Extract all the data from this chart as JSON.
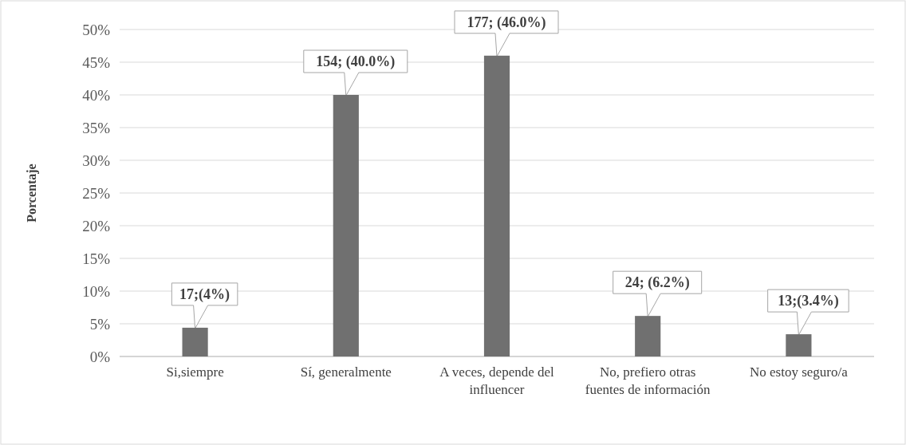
{
  "chart_data": {
    "type": "bar",
    "ylabel": "Porcentaje",
    "categories": [
      "Si,siempre",
      "Sí, generalmente",
      "A veces, depende del influencer",
      "No, prefiero otras fuentes de información",
      "No estoy seguro/a"
    ],
    "values": [
      4.4,
      40,
      46,
      6.2,
      3.4
    ],
    "value_labels": [
      "17;(4%)",
      "154; (40.0%)",
      "177; (46.0%)",
      "24; (6.2%)",
      "13;(3.4%)"
    ],
    "color": "#707070",
    "ylim": [
      0,
      50
    ],
    "yticks": [
      {
        "value": 0,
        "label": "0%"
      },
      {
        "value": 5,
        "label": "5%"
      },
      {
        "value": 10,
        "label": "10%"
      },
      {
        "value": 15,
        "label": "15%"
      },
      {
        "value": 20,
        "label": "20%"
      },
      {
        "value": 25,
        "label": "25%"
      },
      {
        "value": 30,
        "label": "30%"
      },
      {
        "value": 35,
        "label": "35%"
      },
      {
        "value": 40,
        "label": "40%"
      },
      {
        "value": 45,
        "label": "45%"
      },
      {
        "value": 50,
        "label": "50%"
      }
    ],
    "grid": "y"
  }
}
